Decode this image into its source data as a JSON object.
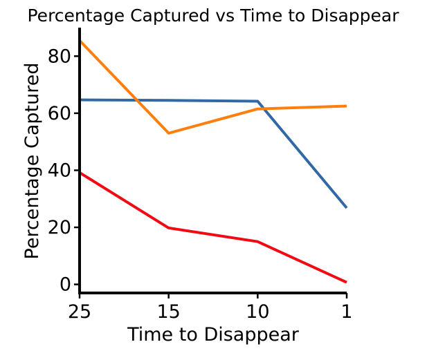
{
  "chart_data": {
    "type": "line",
    "title": "Percentage Captured vs Time to Disappear",
    "xlabel": "Time to Disappear",
    "ylabel": "Percentage Captured",
    "x": [
      "25",
      "15",
      "10",
      "1"
    ],
    "ylim": [
      -3,
      90
    ],
    "yticks": [
      0,
      20,
      40,
      60,
      80
    ],
    "grid": false,
    "legend": "none",
    "series": [
      {
        "color": "#3269a4",
        "values": [
          64.7,
          64.5,
          64.2,
          26.8
        ]
      },
      {
        "color": "#ff7f0e",
        "values": [
          85.5,
          53.0,
          61.5,
          62.5
        ]
      },
      {
        "color": "#f00a14",
        "values": [
          39.2,
          19.8,
          15.0,
          0.7
        ]
      }
    ]
  }
}
